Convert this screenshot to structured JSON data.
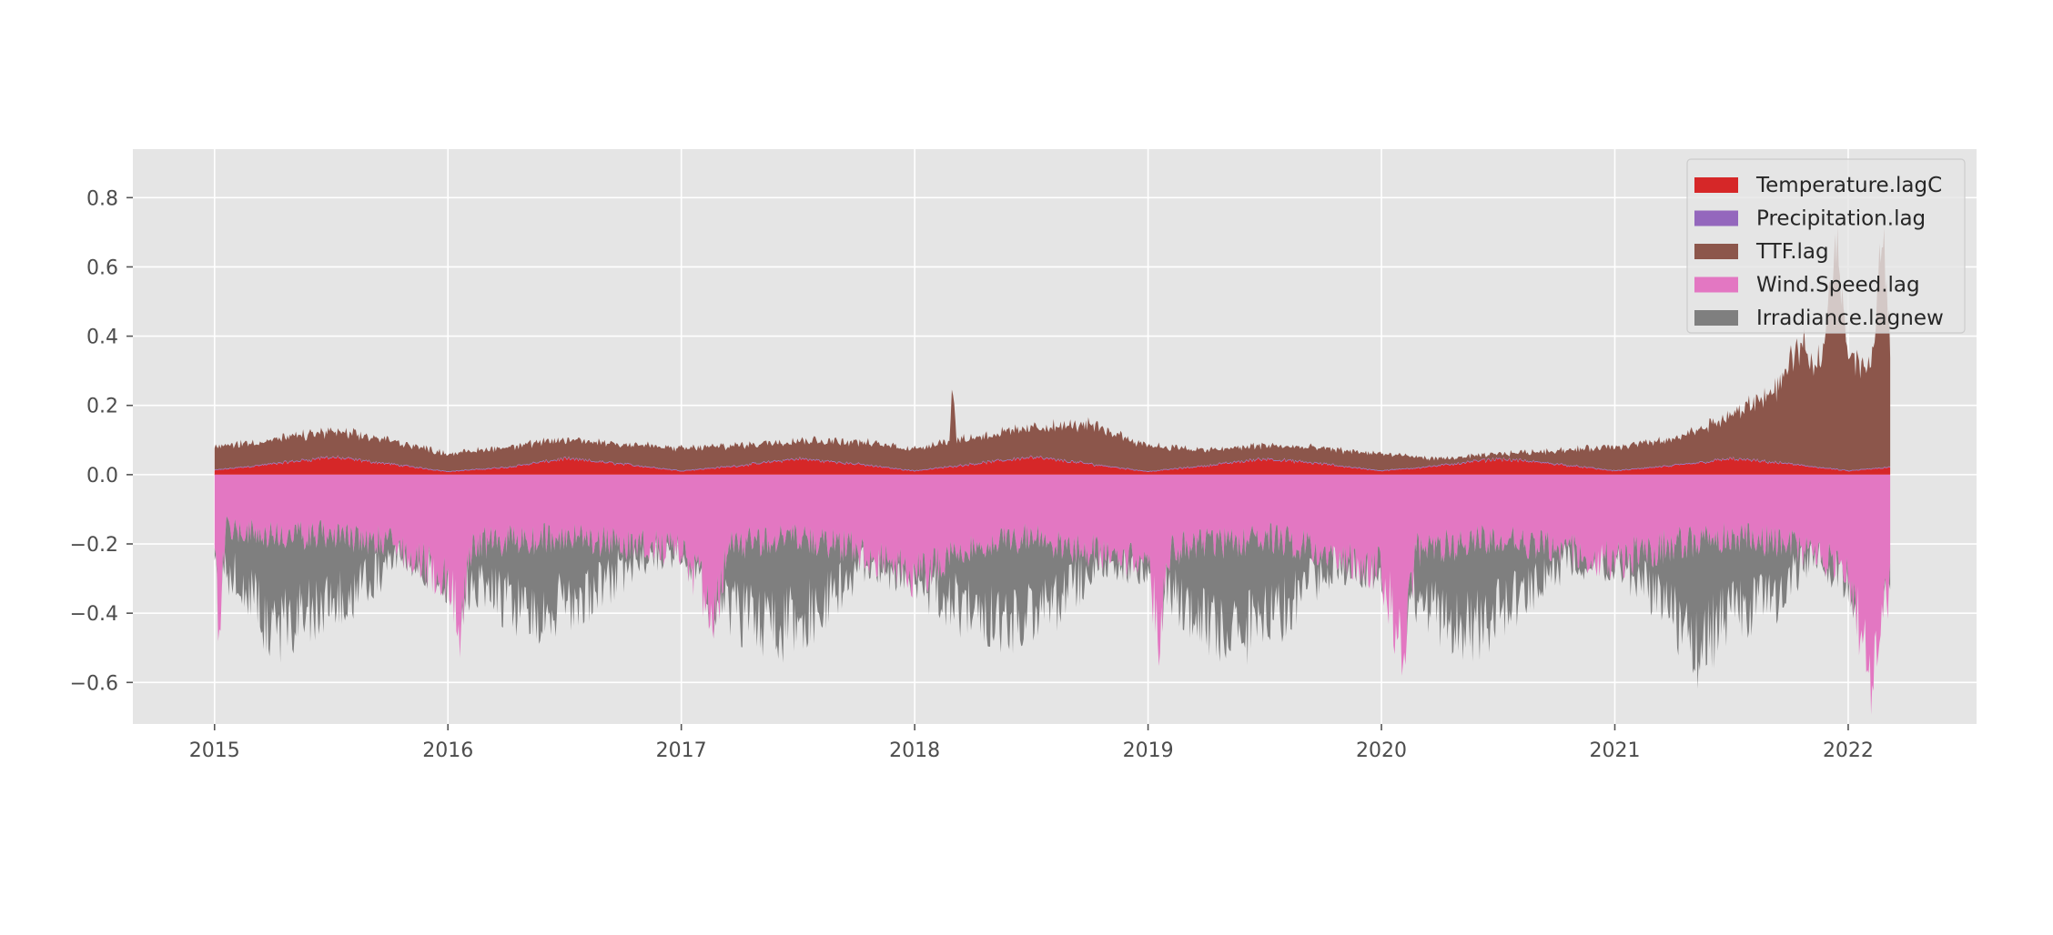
{
  "chart_data": {
    "type": "area",
    "title": "",
    "xlabel": "",
    "ylabel": "",
    "xlim": [
      2014.65,
      2022.55
    ],
    "ylim": [
      -0.72,
      0.94
    ],
    "xticks": [
      2015,
      2016,
      2017,
      2018,
      2019,
      2020,
      2021,
      2022
    ],
    "yticks": [
      -0.6,
      -0.4,
      -0.2,
      0.0,
      0.2,
      0.4,
      0.6,
      0.8
    ],
    "ytick_labels": [
      "−0.6",
      "−0.4",
      "−0.2",
      "0.0",
      "0.2",
      "0.4",
      "0.6",
      "0.8"
    ],
    "grid": true,
    "legend_position": "upper-right",
    "x_range": [
      2015.0,
      2022.18
    ],
    "series": [
      {
        "name": "Temperature.lagC",
        "color": "#d62728",
        "side": "positive",
        "points": [
          [
            2015.0,
            0.012
          ],
          [
            2015.25,
            0.03
          ],
          [
            2015.5,
            0.05
          ],
          [
            2015.75,
            0.03
          ],
          [
            2016.0,
            0.008
          ],
          [
            2016.25,
            0.02
          ],
          [
            2016.5,
            0.045
          ],
          [
            2016.75,
            0.03
          ],
          [
            2017.0,
            0.01
          ],
          [
            2017.25,
            0.025
          ],
          [
            2017.5,
            0.045
          ],
          [
            2017.75,
            0.03
          ],
          [
            2018.0,
            0.01
          ],
          [
            2018.25,
            0.03
          ],
          [
            2018.5,
            0.05
          ],
          [
            2018.75,
            0.03
          ],
          [
            2019.0,
            0.008
          ],
          [
            2019.25,
            0.025
          ],
          [
            2019.5,
            0.045
          ],
          [
            2019.75,
            0.03
          ],
          [
            2020.0,
            0.01
          ],
          [
            2020.25,
            0.025
          ],
          [
            2020.5,
            0.045
          ],
          [
            2020.75,
            0.03
          ],
          [
            2021.0,
            0.01
          ],
          [
            2021.25,
            0.025
          ],
          [
            2021.5,
            0.045
          ],
          [
            2021.75,
            0.03
          ],
          [
            2022.0,
            0.01
          ],
          [
            2022.18,
            0.02
          ]
        ]
      },
      {
        "name": "Precipitation.lag",
        "color": "#9467bd",
        "side": "positive",
        "points": [
          [
            2015.0,
            0.002
          ],
          [
            2022.18,
            0.002
          ]
        ]
      },
      {
        "name": "TTF.lag",
        "color": "#8c564b",
        "side": "positive",
        "points": [
          [
            2015.0,
            0.08
          ],
          [
            2015.25,
            0.1
          ],
          [
            2015.5,
            0.125
          ],
          [
            2015.75,
            0.1
          ],
          [
            2016.0,
            0.06
          ],
          [
            2016.25,
            0.08
          ],
          [
            2016.5,
            0.1
          ],
          [
            2016.75,
            0.09
          ],
          [
            2017.0,
            0.075
          ],
          [
            2017.25,
            0.085
          ],
          [
            2017.5,
            0.1
          ],
          [
            2017.75,
            0.095
          ],
          [
            2018.0,
            0.075
          ],
          [
            2018.15,
            0.1
          ],
          [
            2018.16,
            0.27
          ],
          [
            2018.18,
            0.1
          ],
          [
            2018.5,
            0.135
          ],
          [
            2018.75,
            0.145
          ],
          [
            2019.0,
            0.085
          ],
          [
            2019.25,
            0.07
          ],
          [
            2019.5,
            0.085
          ],
          [
            2019.75,
            0.075
          ],
          [
            2020.0,
            0.06
          ],
          [
            2020.25,
            0.045
          ],
          [
            2020.5,
            0.06
          ],
          [
            2020.75,
            0.07
          ],
          [
            2021.0,
            0.08
          ],
          [
            2021.25,
            0.1
          ],
          [
            2021.5,
            0.17
          ],
          [
            2021.7,
            0.25
          ],
          [
            2021.8,
            0.38
          ],
          [
            2021.85,
            0.3
          ],
          [
            2021.9,
            0.4
          ],
          [
            2021.95,
            0.7
          ],
          [
            2022.0,
            0.35
          ],
          [
            2022.05,
            0.32
          ],
          [
            2022.1,
            0.3
          ],
          [
            2022.15,
            0.75
          ],
          [
            2022.18,
            0.35
          ]
        ]
      },
      {
        "name": "Wind.Speed.lag",
        "color": "#e377c2",
        "side": "negative",
        "points": [
          [
            2015.0,
            -0.25
          ],
          [
            2015.02,
            -0.45
          ],
          [
            2015.05,
            -0.15
          ],
          [
            2015.25,
            -0.18
          ],
          [
            2015.5,
            -0.17
          ],
          [
            2015.75,
            -0.2
          ],
          [
            2016.0,
            -0.3
          ],
          [
            2016.05,
            -0.45
          ],
          [
            2016.1,
            -0.2
          ],
          [
            2016.5,
            -0.18
          ],
          [
            2016.75,
            -0.2
          ],
          [
            2017.0,
            -0.22
          ],
          [
            2017.15,
            -0.4
          ],
          [
            2017.2,
            -0.2
          ],
          [
            2017.5,
            -0.18
          ],
          [
            2017.75,
            -0.22
          ],
          [
            2018.0,
            -0.3
          ],
          [
            2018.25,
            -0.2
          ],
          [
            2018.5,
            -0.18
          ],
          [
            2018.75,
            -0.22
          ],
          [
            2019.0,
            -0.25
          ],
          [
            2019.05,
            -0.48
          ],
          [
            2019.1,
            -0.22
          ],
          [
            2019.5,
            -0.18
          ],
          [
            2019.75,
            -0.22
          ],
          [
            2020.0,
            -0.28
          ],
          [
            2020.1,
            -0.52
          ],
          [
            2020.15,
            -0.22
          ],
          [
            2020.5,
            -0.18
          ],
          [
            2020.75,
            -0.22
          ],
          [
            2021.0,
            -0.25
          ],
          [
            2021.25,
            -0.2
          ],
          [
            2021.5,
            -0.18
          ],
          [
            2021.75,
            -0.2
          ],
          [
            2022.0,
            -0.28
          ],
          [
            2022.1,
            -0.6
          ],
          [
            2022.18,
            -0.3
          ]
        ]
      },
      {
        "name": "Irradiance.lagnew",
        "color": "#7f7f7f",
        "side": "negative",
        "points": [
          [
            2015.0,
            -0.26
          ],
          [
            2015.1,
            -0.3
          ],
          [
            2015.25,
            -0.45
          ],
          [
            2015.4,
            -0.4
          ],
          [
            2015.6,
            -0.35
          ],
          [
            2015.8,
            -0.22
          ],
          [
            2016.0,
            -0.3
          ],
          [
            2016.2,
            -0.35
          ],
          [
            2016.35,
            -0.4
          ],
          [
            2016.6,
            -0.35
          ],
          [
            2016.8,
            -0.25
          ],
          [
            2017.0,
            -0.22
          ],
          [
            2017.2,
            -0.38
          ],
          [
            2017.4,
            -0.45
          ],
          [
            2017.6,
            -0.38
          ],
          [
            2017.8,
            -0.24
          ],
          [
            2018.0,
            -0.3
          ],
          [
            2018.2,
            -0.38
          ],
          [
            2018.4,
            -0.42
          ],
          [
            2018.6,
            -0.38
          ],
          [
            2018.8,
            -0.25
          ],
          [
            2019.0,
            -0.26
          ],
          [
            2019.2,
            -0.42
          ],
          [
            2019.4,
            -0.45
          ],
          [
            2019.6,
            -0.38
          ],
          [
            2019.8,
            -0.25
          ],
          [
            2020.0,
            -0.28
          ],
          [
            2020.2,
            -0.4
          ],
          [
            2020.4,
            -0.44
          ],
          [
            2020.6,
            -0.35
          ],
          [
            2020.8,
            -0.24
          ],
          [
            2021.0,
            -0.25
          ],
          [
            2021.2,
            -0.35
          ],
          [
            2021.35,
            -0.5
          ],
          [
            2021.5,
            -0.4
          ],
          [
            2021.7,
            -0.35
          ],
          [
            2021.85,
            -0.22
          ],
          [
            2022.0,
            -0.3
          ],
          [
            2022.1,
            -0.35
          ],
          [
            2022.18,
            -0.3
          ]
        ]
      }
    ]
  }
}
